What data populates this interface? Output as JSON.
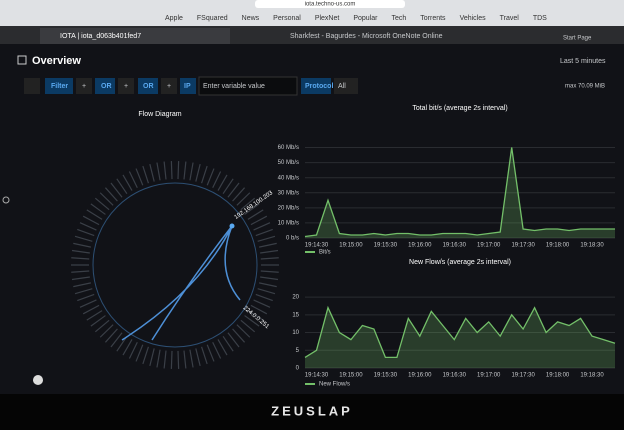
{
  "browser": {
    "url": "iota.techno-us.com",
    "bookmarks": [
      "Apple",
      "FSquared",
      "News",
      "Personal",
      "PlexNet",
      "Popular",
      "Tech",
      "Torrents",
      "Vehicles",
      "Travel",
      "TDS"
    ],
    "tabs": [
      "IOTA | iota_d063b401fed7",
      "Sharkfest - Bagurdes - Microsoft OneNote Online",
      "Start Page"
    ]
  },
  "dashboard": {
    "title": "Overview",
    "time_range": "Last 5 minutes",
    "filter_bar": {
      "filter": "Filter",
      "or_1": "OR",
      "or_2": "OR",
      "ip": "IP",
      "placeholder": "Enter variable value",
      "protocol": "Protocol",
      "protocol_value": "All",
      "max": "max 70.09 MiB"
    },
    "flow_diagram": {
      "title": "Flow Diagram",
      "nodes": [
        "192.168.100.203",
        "224.0.0.251"
      ]
    }
  },
  "bezel": "ZEUSLAP",
  "chart_data": [
    {
      "type": "line",
      "title": "Total bit/s (average 2s interval)",
      "categories": [
        null,
        "19:14:30",
        null,
        null,
        "19:15:00",
        null,
        null,
        "19:15:30",
        null,
        null,
        "19:16:00",
        null,
        null,
        "19:16:30",
        null,
        null,
        "19:17:00",
        null,
        null,
        "19:17:30",
        null,
        null,
        "19:18:00",
        null,
        null,
        "19:18:30",
        null,
        null
      ],
      "series": [
        {
          "name": "Bit/s",
          "color": "#73bf69",
          "values": [
            1,
            2,
            25,
            3,
            2,
            2,
            3,
            2,
            3,
            3,
            2,
            2,
            3,
            3,
            3,
            2,
            3,
            4,
            60,
            6,
            5,
            6,
            6,
            5,
            6,
            6,
            6,
            6
          ]
        }
      ],
      "ylim": [
        0,
        65
      ],
      "yticks": [
        {
          "value": 0,
          "label": "0 b/s"
        },
        {
          "value": 10,
          "label": "10 Mb/s"
        },
        {
          "value": 20,
          "label": "20 Mb/s"
        },
        {
          "value": 30,
          "label": "30 Mb/s"
        },
        {
          "value": 40,
          "label": "40 Mb/s"
        },
        {
          "value": 50,
          "label": "50 Mb/s"
        },
        {
          "value": 60,
          "label": "60 Mb/s"
        }
      ],
      "grid": true
    },
    {
      "type": "line",
      "title": "New Flow/s (average 2s interval)",
      "categories": [
        null,
        "19:14:30",
        null,
        null,
        "19:15:00",
        null,
        null,
        "19:15:30",
        null,
        null,
        "19:16:00",
        null,
        null,
        "19:16:30",
        null,
        null,
        "19:17:00",
        null,
        null,
        "19:17:30",
        null,
        null,
        "19:18:00",
        null,
        null,
        "19:18:30",
        null,
        null
      ],
      "series": [
        {
          "name": "New Flow/s",
          "color": "#73bf69",
          "values": [
            3,
            5,
            17,
            10,
            8,
            12,
            11,
            3,
            3,
            14,
            9,
            16,
            12,
            8,
            14,
            10,
            13,
            9,
            15,
            11,
            17,
            10,
            13,
            12,
            14,
            9,
            8,
            7
          ]
        }
      ],
      "ylim": [
        0,
        22
      ],
      "yticks": [
        0,
        5,
        10,
        15,
        20
      ],
      "grid": true
    }
  ]
}
